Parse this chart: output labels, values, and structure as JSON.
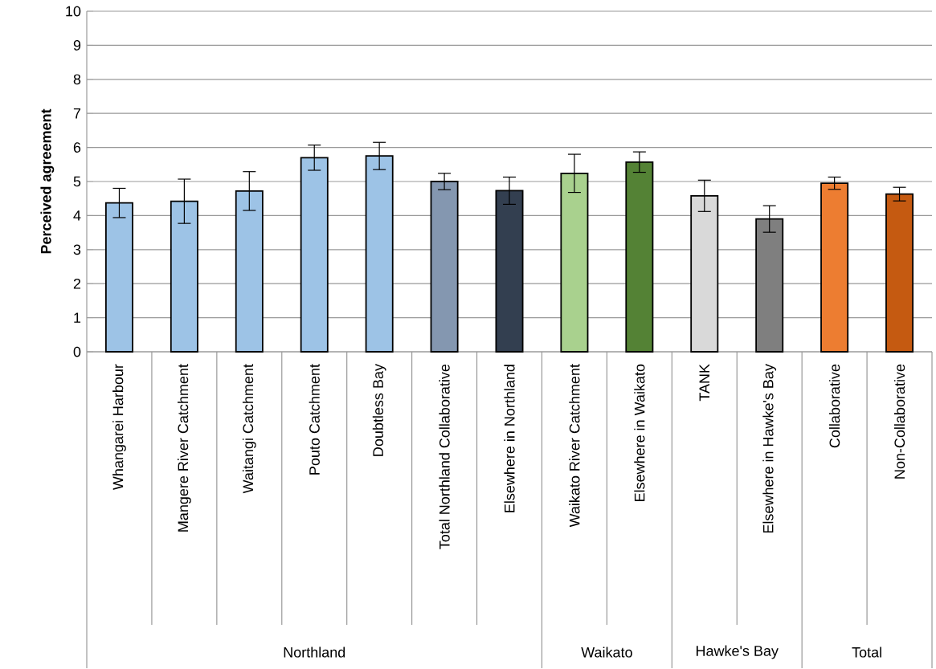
{
  "chart_data": {
    "type": "bar",
    "ylabel": "Perceived agreement",
    "categories": [
      "Whangarei Harbour",
      "Mangere River Catchment",
      "Waitangi Catchment",
      "Pouto Catchment",
      "Doubtless Bay",
      "Total Northland Collaborative",
      "Elsewhere in Northland",
      "Waikato River Catchment",
      "Elsewhere in Waikato",
      "TANK",
      "Elsewhere in Hawke's Bay",
      "Collaborative",
      "Non-Collaborative"
    ],
    "values": [
      4.37,
      4.42,
      4.72,
      5.7,
      5.75,
      5.0,
      4.73,
      5.24,
      5.57,
      4.58,
      3.9,
      4.95,
      4.63
    ],
    "errors": [
      0.43,
      0.65,
      0.57,
      0.37,
      0.4,
      0.24,
      0.4,
      0.56,
      0.3,
      0.46,
      0.39,
      0.18,
      0.2
    ],
    "colors": [
      "#9dc3e6",
      "#9dc3e6",
      "#9dc3e6",
      "#9dc3e6",
      "#9dc3e6",
      "#8497b0",
      "#333f50",
      "#a9d18e",
      "#548235",
      "#d9d9d9",
      "#7f7f7f",
      "#ed7d31",
      "#c55a11"
    ],
    "ylim": [
      0,
      10
    ],
    "yticks": [
      0,
      1,
      2,
      3,
      4,
      5,
      6,
      7,
      8,
      9,
      10
    ],
    "grid": "y",
    "annotations": [
      "Northland",
      "Waikato",
      "Hawke's Bay",
      "Total"
    ]
  }
}
